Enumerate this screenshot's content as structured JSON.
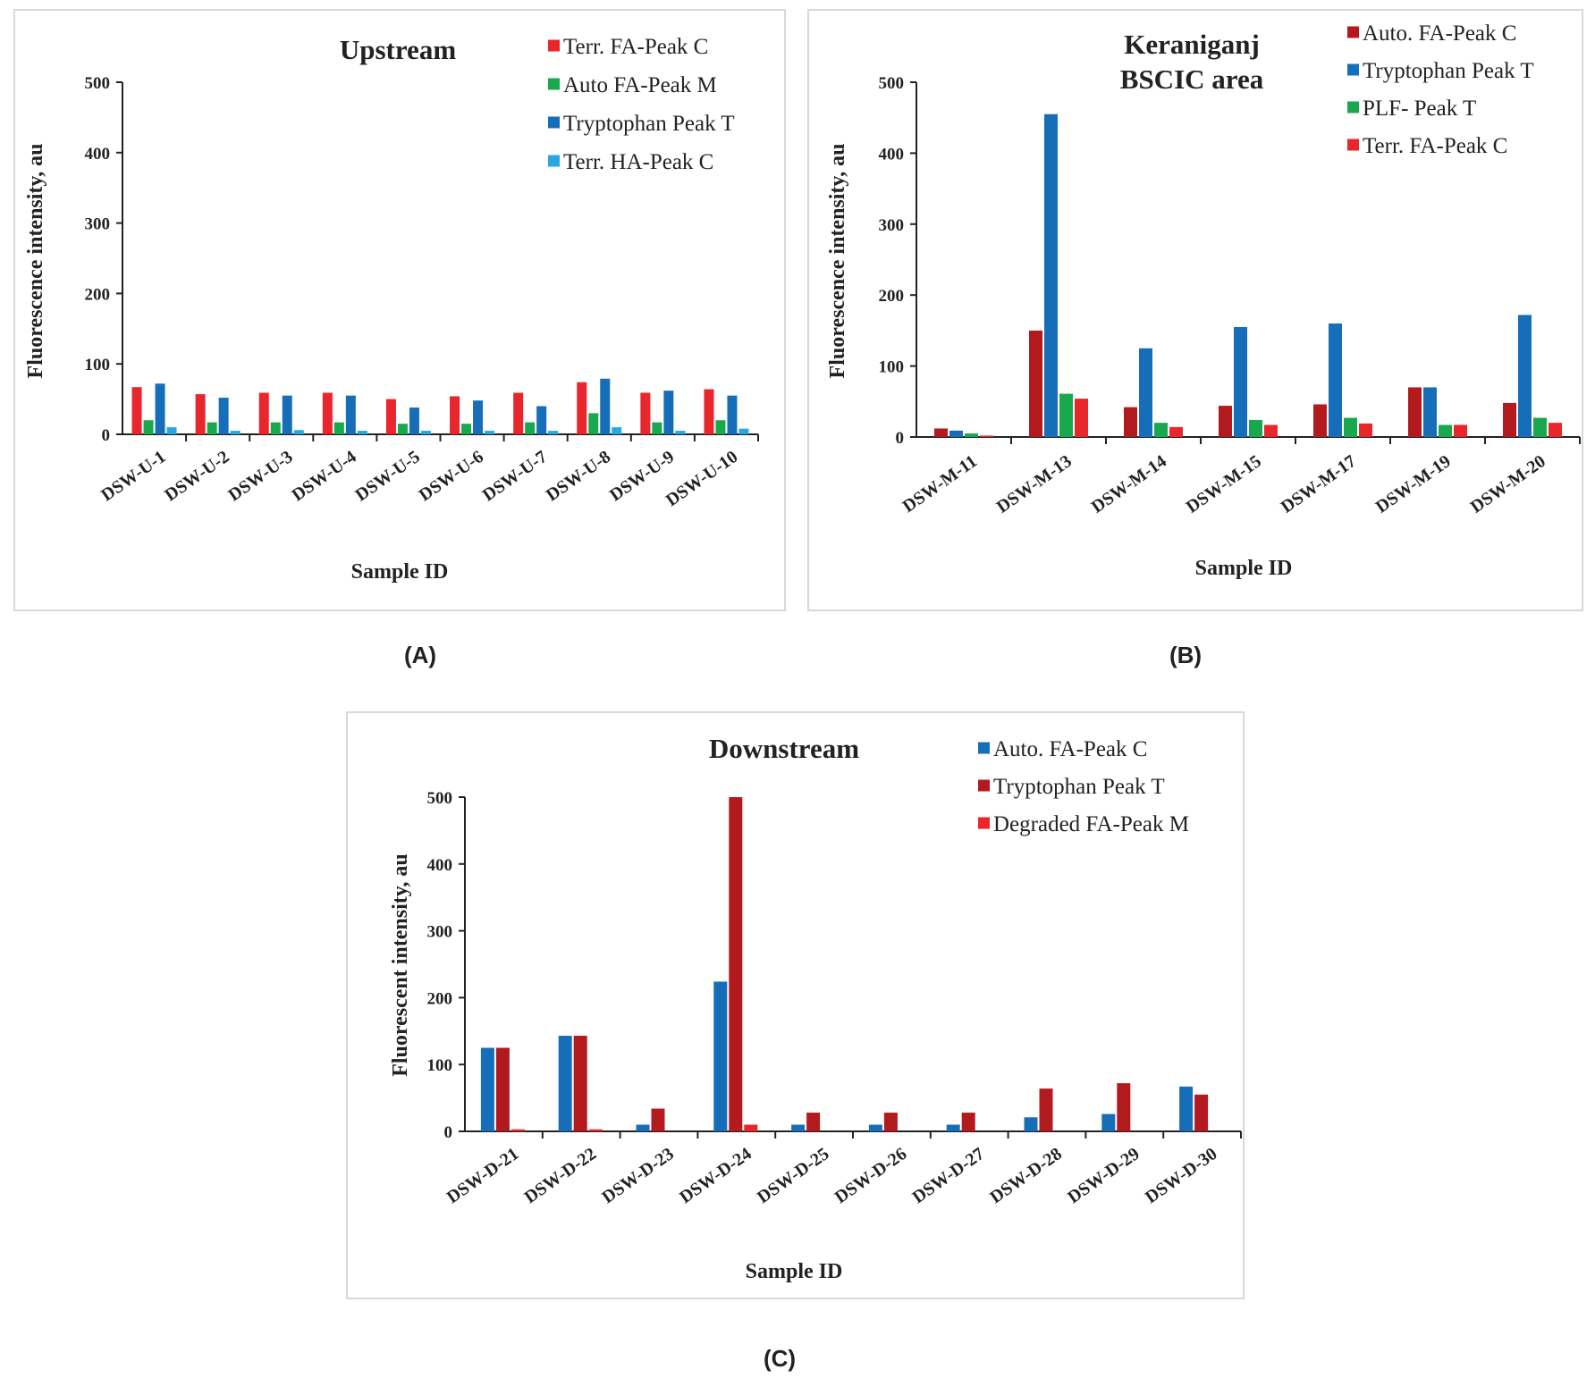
{
  "colors": {
    "red": "#e8262b",
    "green": "#1aa84f",
    "blue": "#176eb8",
    "lightblue": "#29a8df",
    "darkred": "#b31a1e",
    "axis": "#222222",
    "frame": "#d8d8d8"
  },
  "chart_data": [
    {
      "panel_label": "(A)",
      "type": "bar",
      "title": "Upstream",
      "xlabel": "Sample ID",
      "ylabel": "Fluorescence intensity, au",
      "ylim": [
        0,
        500
      ],
      "yticks": [
        "0",
        "100",
        "200",
        "300",
        "400",
        "500"
      ],
      "legend_position": "top-right",
      "categories": [
        "DSW-U-1",
        "DSW-U-2",
        "DSW-U-3",
        "DSW-U-4",
        "DSW-U-5",
        "DSW-U-6",
        "DSW-U-7",
        "DSW-U-8",
        "DSW-U-9",
        "DSW-U-10"
      ],
      "series": [
        {
          "name": "Terr. FA-Peak C",
          "color": "#e8262b",
          "values": [
            67,
            57,
            59,
            59,
            50,
            54,
            59,
            74,
            59,
            64
          ]
        },
        {
          "name": "Auto FA-Peak M",
          "color": "#1aa84f",
          "values": [
            20,
            17,
            17,
            17,
            15,
            15,
            17,
            30,
            17,
            20
          ]
        },
        {
          "name": "Tryptophan Peak T",
          "color": "#176eb8",
          "values": [
            72,
            52,
            55,
            55,
            38,
            48,
            40,
            79,
            62,
            55
          ]
        },
        {
          "name": "Terr. HA-Peak C",
          "color": "#29a8df",
          "values": [
            10,
            5,
            6,
            5,
            5,
            5,
            5,
            10,
            5,
            8
          ]
        }
      ]
    },
    {
      "panel_label": "(B)",
      "type": "bar",
      "title": "Keraniganj\nBSCIC area",
      "title_lines": [
        "Keraniganj",
        "BSCIC area"
      ],
      "xlabel": "Sample ID",
      "ylabel": "Fluorescence intensity, au",
      "ylim": [
        0,
        500
      ],
      "yticks": [
        "0",
        "100",
        "200",
        "300",
        "400",
        "500"
      ],
      "legend_position": "top-right",
      "categories": [
        "DSW-M-11",
        "DSW-M-13",
        "DSW-M-14",
        "DSW-M-15",
        "DSW-M-17",
        "DSW-M-19",
        "DSW-M-20"
      ],
      "series": [
        {
          "name": "Auto. FA-Peak C",
          "color": "#b31a1e",
          "values": [
            12,
            150,
            42,
            44,
            46,
            70,
            48
          ]
        },
        {
          "name": "Tryptophan Peak T",
          "color": "#176eb8",
          "values": [
            9,
            455,
            125,
            155,
            160,
            70,
            172
          ]
        },
        {
          "name": "PLF- Peak T",
          "color": "#1aa84f",
          "values": [
            5,
            61,
            20,
            24,
            27,
            17,
            27
          ]
        },
        {
          "name": "Terr. FA-Peak C",
          "color": "#e8262b",
          "values": [
            2,
            54,
            14,
            17,
            19,
            17,
            20
          ]
        }
      ]
    },
    {
      "panel_label": "(C)",
      "type": "bar",
      "title": "Downstream",
      "xlabel": "Sample ID",
      "ylabel": "Fluorescent intensity, au",
      "ylim": [
        0,
        500
      ],
      "yticks": [
        "0",
        "100",
        "200",
        "300",
        "400",
        "500"
      ],
      "legend_position": "top-right",
      "categories": [
        "DSW-D-21",
        "DSW-D-22",
        "DSW-D-23",
        "DSW-D-24",
        "DSW-D-25",
        "DSW-D-26",
        "DSW-D-27",
        "DSW-D-28",
        "DSW-D-29",
        "DSW-D-30"
      ],
      "series": [
        {
          "name": "Auto. FA-Peak C",
          "color": "#176eb8",
          "values": [
            125,
            143,
            10,
            224,
            10,
            10,
            10,
            21,
            26,
            67
          ]
        },
        {
          "name": "Tryptophan Peak T",
          "color": "#b31a1e",
          "values": [
            125,
            143,
            34,
            500,
            28,
            28,
            28,
            64,
            72,
            55
          ]
        },
        {
          "name": "Degraded FA-Peak M",
          "color": "#e8262b",
          "values": [
            3,
            3,
            0,
            10,
            0,
            0,
            0,
            0,
            0,
            0
          ]
        }
      ]
    }
  ]
}
